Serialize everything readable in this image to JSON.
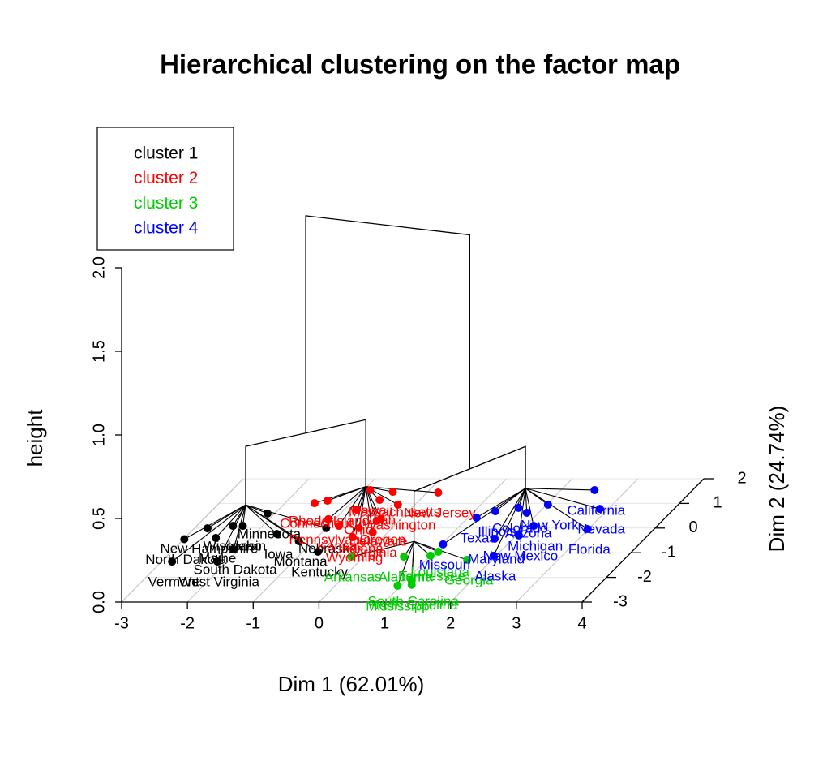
{
  "chart_data": {
    "type": "factor-map-3d",
    "title": "Hierarchical clustering on the factor map",
    "x_label": "Dim 1 (62.01%)",
    "y_label": "Dim 2 (24.74%)",
    "z_label": "height",
    "xlim": [
      -3,
      4
    ],
    "xticks": [
      -3,
      -2,
      -1,
      0,
      1,
      2,
      3,
      4
    ],
    "ylim": [
      -3,
      2
    ],
    "yticks": [
      -3,
      -2,
      -1,
      0,
      1,
      2
    ],
    "zlim": [
      0,
      2
    ],
    "zticks": [
      {
        "value": 0,
        "label": "0.0"
      },
      {
        "value": 0.5,
        "label": "0.5"
      },
      {
        "value": 1,
        "label": "1.0"
      },
      {
        "value": 1.5,
        "label": "1.5"
      },
      {
        "value": 2,
        "label": "2.0"
      }
    ],
    "grid": true,
    "legend": "topleft",
    "cluster_heights": [
      0.2,
      0.15,
      0.15,
      0.2
    ],
    "merge_heights": [
      0.55,
      0.45,
      1.85
    ],
    "series": [
      {
        "name": "cluster 1",
        "color": "#000000",
        "labels": [
          "North Dakota",
          "Vermont",
          "West Virginia",
          "South Dakota",
          "New Hampshire",
          "Maine",
          "Idaho",
          "Montana",
          "Kentucky",
          "Wisconsin",
          "Minnesota",
          "Iowa",
          "Nebraska"
        ],
        "x": [
          -2.99,
          -2.84,
          -2.15,
          -2.09,
          -2.8,
          -2.53,
          -2.3,
          -1.22,
          -0.77,
          -2.45,
          -2.11,
          -1.66,
          -1.0
        ],
        "y": [
          -0.45,
          -1.36,
          -1.36,
          -0.86,
          -0.01,
          -0.4,
          0.09,
          -0.53,
          -0.96,
          0.09,
          0.59,
          -0.24,
          0.0
        ]
      },
      {
        "name": "cluster 2",
        "color": "#ff0000",
        "labels": [
          "Rhode Island",
          "Connecticut",
          "Hawaii",
          "Massachusetts",
          "New Jersey",
          "Washington",
          "Utah",
          "Ohio",
          "Oregon",
          "Pennsylvania",
          "Wyoming",
          "Virginia",
          "Delaware",
          "Kansas",
          "Indiana"
        ],
        "x": [
          -1.39,
          -1.55,
          -0.9,
          -0.53,
          0.17,
          -0.26,
          -0.61,
          -0.81,
          -0.3,
          -1.1,
          -0.46,
          -0.23,
          -0.34,
          -0.84,
          -0.5
        ],
        "y": [
          1.11,
          1.01,
          1.54,
          1.47,
          1.44,
          0.95,
          1.14,
          0.75,
          0.36,
          0.36,
          -0.37,
          -0.17,
          0.29,
          0.09,
          0.0
        ]
      },
      {
        "name": "cluster 3",
        "color": "#00cd00",
        "labels": [
          "Arkansas",
          "Alabama",
          "Tennessee",
          "Georgia",
          "South Carolina",
          "North Carolina",
          "Mississippi",
          "Louisiana"
        ],
        "x": [
          -0.19,
          0.61,
          1.0,
          1.62,
          1.09,
          1.15,
          0.95,
          1.06
        ],
        "y": [
          -1.16,
          -1.16,
          -1.12,
          -1.29,
          -2.14,
          -2.3,
          -2.34,
          -0.96
        ]
      },
      {
        "name": "cluster 4",
        "color": "#0000ff",
        "labels": [
          "California",
          "Nevada",
          "Florida",
          "Michigan",
          "New Mexico",
          "Maryland",
          "Alaska",
          "Texas",
          "Illinois",
          "Colorado",
          "Arizona",
          "New York",
          "Missouri"
        ],
        "x": [
          2.51,
          2.87,
          2.99,
          2.12,
          2.04,
          1.72,
          1.96,
          1.13,
          1.32,
          1.62,
          1.82,
          2.02,
          1.02
        ],
        "y": [
          1.54,
          0.78,
          -0.04,
          0.09,
          -0.3,
          -0.43,
          -1.12,
          0.42,
          0.68,
          0.82,
          0.62,
          0.95,
          -0.66
        ]
      }
    ]
  }
}
